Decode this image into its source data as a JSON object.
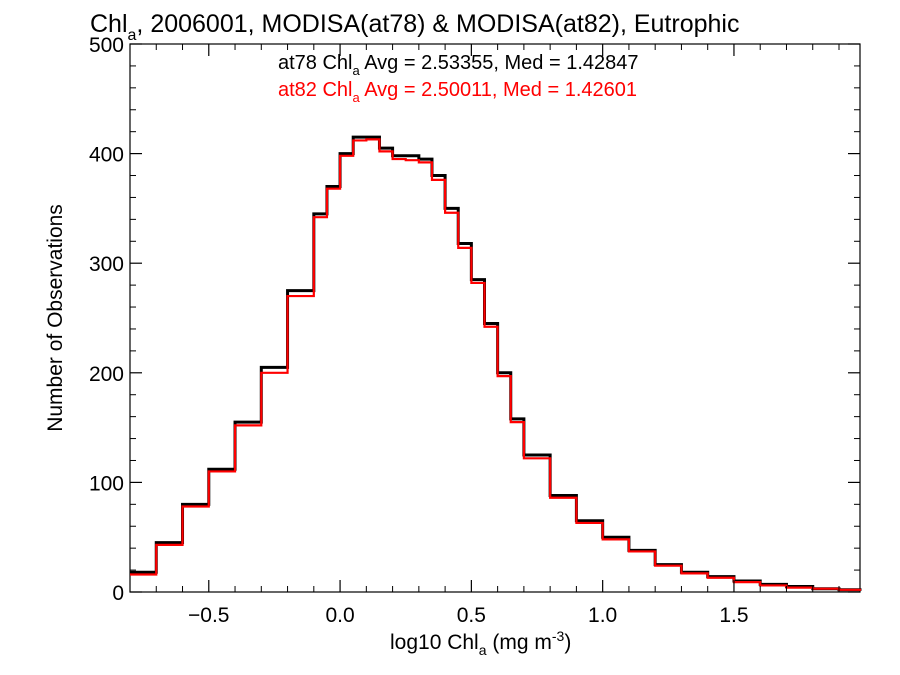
{
  "chart_data": {
    "type": "histogram",
    "title": {
      "main": "Chl",
      "sub": "a",
      "rest": ", 2006001, MODISA(at78) & MODISA(at82), Eutrophic"
    },
    "xlabel": {
      "pre": "log10 Chl",
      "sub": "a",
      "mid": " (mg m",
      "sup": "-3",
      "post": ")"
    },
    "ylabel": "Number of Observations",
    "xlim": [
      -0.8,
      1.98
    ],
    "ylim": [
      0,
      500
    ],
    "xticks": [
      -0.5,
      0.0,
      0.5,
      1.0,
      1.5
    ],
    "xtick_labels": [
      "−0.5",
      "0.0",
      "0.5",
      "1.0",
      "1.5"
    ],
    "yticks": [
      0,
      100,
      200,
      300,
      400,
      500
    ],
    "ytick_labels": [
      "0",
      "100",
      "200",
      "300",
      "400",
      "500"
    ],
    "annotations": [
      {
        "pre": "at78 Chl",
        "sub": "a",
        "post": " Avg = 2.53355, Med = 1.42847",
        "color": "#000000"
      },
      {
        "pre": "at82 Chl",
        "sub": "a",
        "post": " Avg = 2.50011, Med = 1.42601",
        "color": "#ff0000"
      }
    ],
    "series": [
      {
        "name": "at78",
        "color": "#000000",
        "x": [
          -0.8,
          -0.7,
          -0.6,
          -0.5,
          -0.4,
          -0.3,
          -0.2,
          -0.1,
          -0.05,
          0.0,
          0.05,
          0.1,
          0.15,
          0.2,
          0.25,
          0.3,
          0.35,
          0.4,
          0.45,
          0.5,
          0.55,
          0.6,
          0.65,
          0.7,
          0.8,
          0.9,
          1.0,
          1.1,
          1.2,
          1.3,
          1.4,
          1.5,
          1.6,
          1.7,
          1.8,
          1.9,
          1.98
        ],
        "y": [
          18,
          45,
          80,
          112,
          155,
          205,
          275,
          345,
          370,
          400,
          415,
          415,
          405,
          398,
          398,
          395,
          380,
          350,
          318,
          285,
          245,
          200,
          158,
          125,
          88,
          65,
          50,
          38,
          25,
          18,
          14,
          10,
          7,
          5,
          3,
          2,
          1
        ]
      },
      {
        "name": "at82",
        "color": "#ff0000",
        "x": [
          -0.8,
          -0.7,
          -0.6,
          -0.5,
          -0.4,
          -0.3,
          -0.2,
          -0.1,
          -0.05,
          0.0,
          0.05,
          0.1,
          0.15,
          0.2,
          0.25,
          0.3,
          0.35,
          0.4,
          0.45,
          0.5,
          0.55,
          0.6,
          0.65,
          0.7,
          0.8,
          0.9,
          1.0,
          1.1,
          1.2,
          1.3,
          1.4,
          1.5,
          1.6,
          1.7,
          1.8,
          1.9,
          1.98
        ],
        "y": [
          16,
          43,
          78,
          110,
          152,
          200,
          270,
          342,
          368,
          398,
          412,
          413,
          402,
          395,
          394,
          392,
          376,
          346,
          314,
          282,
          242,
          197,
          155,
          122,
          86,
          63,
          48,
          37,
          24,
          17,
          13,
          9,
          6,
          4,
          3,
          2,
          1
        ]
      }
    ]
  }
}
